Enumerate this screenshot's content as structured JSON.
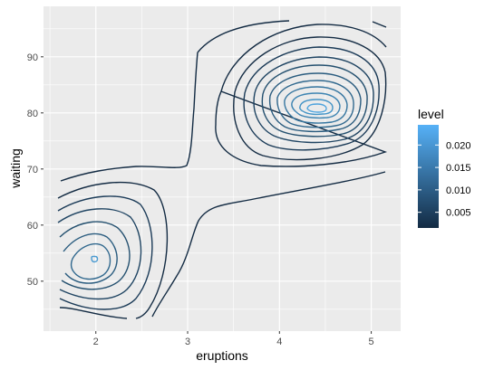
{
  "chart_data": {
    "type": "contour",
    "title": "",
    "xlabel": "eruptions",
    "ylabel": "waiting",
    "xlim": [
      1.43,
      5.32
    ],
    "ylim": [
      41.1,
      99.0
    ],
    "x_ticks": [
      2,
      3,
      4,
      5
    ],
    "y_ticks": [
      50,
      60,
      70,
      80,
      90
    ],
    "grid": true,
    "colors": {
      "panel_bg": "#ebebeb",
      "grid_major": "#ffffff",
      "low": "#132b43",
      "high": "#56b1f7"
    },
    "legend": {
      "title": "level",
      "position": "right",
      "labels": [
        "0.020",
        "0.015",
        "0.010",
        "0.005"
      ],
      "breaks": [
        0.02,
        0.015,
        0.01,
        0.005
      ],
      "range": [
        0.0015,
        0.0245
      ]
    },
    "modes": [
      {
        "x": 4.4,
        "y": 80.0,
        "levels": [
          0.002,
          0.004,
          0.006,
          0.008,
          0.01,
          0.012,
          0.014,
          0.016,
          0.018,
          0.02,
          0.022
        ]
      },
      {
        "x": 1.98,
        "y": 53.4,
        "levels": [
          0.002,
          0.004,
          0.006,
          0.008,
          0.01,
          0.012,
          0.014,
          0.02
        ]
      }
    ]
  }
}
